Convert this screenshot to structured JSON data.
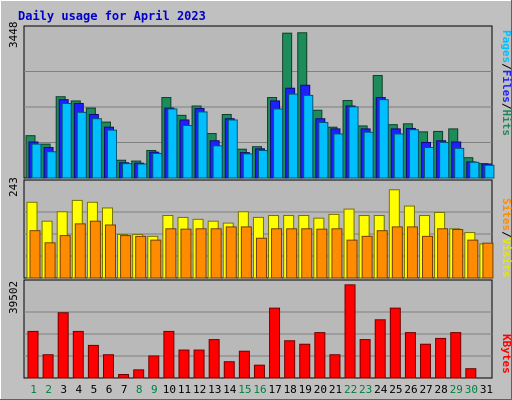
{
  "chart_data": [
    {
      "type": "bar",
      "title": "Daily usage for April 2023",
      "ylabel": "3448",
      "ylim": [
        0,
        3448
      ],
      "categories": [
        "1",
        "2",
        "3",
        "4",
        "5",
        "6",
        "7",
        "8",
        "9",
        "10",
        "11",
        "12",
        "13",
        "14",
        "15",
        "16",
        "17",
        "18",
        "19",
        "20",
        "21",
        "22",
        "23",
        "24",
        "25",
        "26",
        "27",
        "28",
        "29",
        "30",
        "31"
      ],
      "grid": true,
      "series": [
        {
          "name": "Hits",
          "values": [
            1000,
            800,
            1920,
            1820,
            1650,
            1320,
            420,
            400,
            650,
            1900,
            1480,
            1700,
            1050,
            1500,
            680,
            740,
            1900,
            3420,
            3430,
            1600,
            1200,
            1830,
            1230,
            2420,
            1260,
            1280,
            1090,
            1100,
            1160,
            480,
            340
          ]
        },
        {
          "name": "Files",
          "values": [
            850,
            720,
            1850,
            1760,
            1500,
            1200,
            360,
            350,
            610,
            1650,
            1370,
            1640,
            880,
            1400,
            600,
            690,
            1820,
            2120,
            2190,
            1400,
            1160,
            1700,
            1160,
            1900,
            1160,
            1170,
            840,
            880,
            850,
            380,
            330
          ]
        },
        {
          "name": "Pages",
          "values": [
            800,
            620,
            1760,
            1550,
            1400,
            1130,
            340,
            330,
            580,
            1630,
            1240,
            1560,
            760,
            1370,
            570,
            650,
            1630,
            1980,
            1950,
            1310,
            1040,
            1680,
            1080,
            1850,
            1040,
            1140,
            720,
            840,
            700,
            370,
            300
          ]
        }
      ]
    },
    {
      "type": "bar",
      "ylabel": "243",
      "ylim": [
        0,
        243
      ],
      "categories": [
        "1",
        "2",
        "3",
        "4",
        "5",
        "6",
        "7",
        "8",
        "9",
        "10",
        "11",
        "12",
        "13",
        "14",
        "15",
        "16",
        "17",
        "18",
        "19",
        "20",
        "21",
        "22",
        "23",
        "24",
        "25",
        "26",
        "27",
        "28",
        "29",
        "30",
        "31"
      ],
      "grid": true,
      "series": [
        {
          "name": "Visits",
          "values": [
            200,
            150,
            175,
            205,
            200,
            185,
            115,
            115,
            110,
            165,
            160,
            155,
            150,
            145,
            175,
            160,
            165,
            165,
            165,
            158,
            168,
            182,
            165,
            165,
            233,
            190,
            165,
            173,
            130,
            120,
            90
          ]
        },
        {
          "name": "Sites",
          "values": [
            125,
            93,
            112,
            143,
            150,
            140,
            112,
            110,
            100,
            130,
            129,
            130,
            130,
            135,
            135,
            105,
            130,
            130,
            130,
            129,
            130,
            100,
            110,
            125,
            135,
            135,
            110,
            130,
            128,
            100,
            92
          ]
        }
      ]
    },
    {
      "type": "bar",
      "ylabel": "39502",
      "ylim": [
        0,
        39502
      ],
      "categories": [
        "1",
        "2",
        "3",
        "4",
        "5",
        "6",
        "7",
        "8",
        "9",
        "10",
        "11",
        "12",
        "13",
        "14",
        "15",
        "16",
        "17",
        "18",
        "19",
        "20",
        "21",
        "22",
        "23",
        "24",
        "25",
        "26",
        "27",
        "28",
        "29",
        "30",
        "31"
      ],
      "grid": true,
      "series": [
        {
          "name": "KBytes",
          "values": [
            20000,
            10000,
            28000,
            20000,
            14000,
            10000,
            1500,
            3500,
            9500,
            20000,
            12000,
            12000,
            16500,
            7000,
            11500,
            5500,
            30000,
            16000,
            14500,
            19500,
            10000,
            40000,
            16500,
            25000,
            30000,
            19500,
            14500,
            17000,
            19500,
            4000,
            0
          ]
        }
      ]
    }
  ],
  "legend": {
    "hits": "Hits",
    "files": "Files",
    "pages": "Pages",
    "visits": "Visits",
    "sites": "Sites",
    "kbytes": "KBytes",
    "slash": "/"
  },
  "weekend_days": [
    "1",
    "2",
    "8",
    "9",
    "15",
    "16",
    "22",
    "23",
    "29",
    "30"
  ],
  "colors": {
    "background": "#c0c0c0",
    "plot_area": "#b9b9b9",
    "title": "#0000cc",
    "hits": "#1e8b5a",
    "files": "#2020ff",
    "pages": "#00bfff",
    "visits": "#ffff00",
    "sites": "#ff8c00",
    "kbytes": "#ff0000",
    "weekend_label": "#008040",
    "weekday_label": "#000000"
  }
}
